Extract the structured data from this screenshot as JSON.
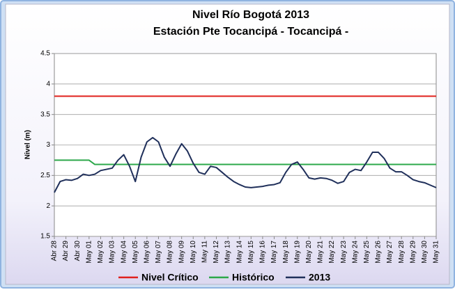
{
  "chart_data": {
    "type": "line",
    "title": "Nivel Río Bogotá 2013",
    "subtitle": "Estación Pte Tocancipá - Tocancipá -",
    "y_label": "Nivel (m)",
    "categories": [
      "Abr 28",
      null,
      "Abr 29",
      null,
      "Abr 30",
      null,
      "May 01",
      null,
      "May 02",
      null,
      "May 03",
      null,
      "May 04",
      null,
      "May 05",
      null,
      "May 06",
      null,
      "May 07",
      null,
      "May 08",
      null,
      "May 09",
      null,
      "May 10",
      null,
      "May 11",
      null,
      "May 12",
      null,
      "May 13",
      null,
      "May 14",
      null,
      "May 15",
      null,
      "May 16",
      null,
      "May 17",
      null,
      "May 18",
      null,
      "May 19",
      null,
      "May 20",
      null,
      "May 21",
      null,
      "May 22",
      null,
      "May 23",
      null,
      "May 24",
      null,
      "May 25",
      null,
      "May 26",
      null,
      "May 27",
      null,
      "May 28",
      null,
      "May 29",
      null,
      "May 30",
      null,
      "May 31"
    ],
    "series": [
      {
        "name": "Nivel Crítico",
        "color": "#e0201c",
        "values": [
          3.8,
          3.8,
          3.8,
          3.8,
          3.8,
          3.8,
          3.8,
          3.8,
          3.8,
          3.8,
          3.8,
          3.8,
          3.8,
          3.8,
          3.8,
          3.8,
          3.8,
          3.8,
          3.8,
          3.8,
          3.8,
          3.8,
          3.8,
          3.8,
          3.8,
          3.8,
          3.8,
          3.8,
          3.8,
          3.8,
          3.8,
          3.8,
          3.8,
          3.8,
          3.8,
          3.8,
          3.8,
          3.8,
          3.8,
          3.8,
          3.8,
          3.8,
          3.8,
          3.8,
          3.8,
          3.8,
          3.8,
          3.8,
          3.8,
          3.8,
          3.8,
          3.8,
          3.8,
          3.8,
          3.8,
          3.8,
          3.8,
          3.8,
          3.8,
          3.8,
          3.8,
          3.8,
          3.8,
          3.8,
          3.8,
          3.8,
          3.8
        ]
      },
      {
        "name": "Histórico",
        "color": "#2ca84a",
        "values": [
          2.75,
          2.75,
          2.75,
          2.75,
          2.75,
          2.75,
          2.75,
          2.68,
          2.68,
          2.68,
          2.68,
          2.68,
          2.68,
          2.68,
          2.68,
          2.68,
          2.68,
          2.68,
          2.68,
          2.68,
          2.68,
          2.68,
          2.68,
          2.68,
          2.68,
          2.68,
          2.68,
          2.68,
          2.68,
          2.68,
          2.68,
          2.68,
          2.68,
          2.68,
          2.68,
          2.68,
          2.68,
          2.68,
          2.68,
          2.68,
          2.68,
          2.68,
          2.68,
          2.68,
          2.68,
          2.68,
          2.68,
          2.68,
          2.68,
          2.68,
          2.68,
          2.68,
          2.68,
          2.68,
          2.68,
          2.68,
          2.68,
          2.68,
          2.68,
          2.68,
          2.68,
          2.68,
          2.68,
          2.68,
          2.68,
          2.68,
          2.68
        ]
      },
      {
        "name": "2013",
        "color": "#1f2f5a",
        "values": [
          2.22,
          2.4,
          2.43,
          2.42,
          2.45,
          2.52,
          2.5,
          2.52,
          2.58,
          2.6,
          2.62,
          2.75,
          2.84,
          2.65,
          2.4,
          2.8,
          3.05,
          3.12,
          3.05,
          2.8,
          2.65,
          2.85,
          3.02,
          2.9,
          2.7,
          2.55,
          2.52,
          2.65,
          2.63,
          2.55,
          2.47,
          2.4,
          2.35,
          2.31,
          2.3,
          2.31,
          2.32,
          2.34,
          2.35,
          2.38,
          2.55,
          2.68,
          2.72,
          2.6,
          2.46,
          2.44,
          2.46,
          2.45,
          2.42,
          2.37,
          2.4,
          2.55,
          2.6,
          2.58,
          2.72,
          2.88,
          2.88,
          2.78,
          2.62,
          2.56,
          2.56,
          2.5,
          2.43,
          2.4,
          2.38,
          2.34,
          2.3
        ]
      }
    ],
    "ylim": [
      1.5,
      4.5
    ],
    "yticks": [
      1.5,
      2,
      2.5,
      3,
      3.5,
      4,
      4.5
    ],
    "grid": true,
    "legend": "bottom"
  }
}
